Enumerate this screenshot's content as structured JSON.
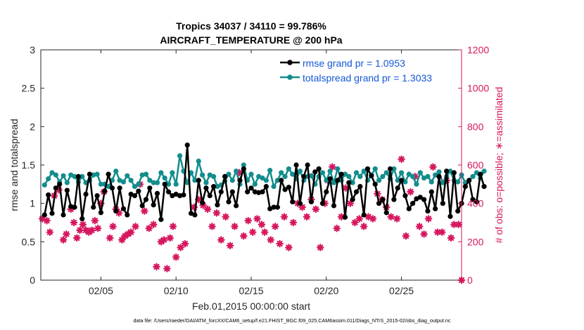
{
  "chart_data": {
    "type": "line",
    "title": "Tropics 34037 / 34110 = 99.786%",
    "subtitle": "AIRCRAFT_TEMPERATURE @ 200 hPa",
    "xlabel": "Feb.01,2015 00:00:00 start",
    "ylabel_left": "rmse and totalspread",
    "ylabel_right": "# of obs: o=possible; ∗=assimilated",
    "footer": "data file: /Users/raeder/DAI/ATM_forcXX/CAM6_setup/f.e21.FHIST_BGC.f09_025.CAM6assim.011/Diags_NTrS_2015-02/obs_diag_output.nc",
    "xlim": [
      1,
      29
    ],
    "ylim_left": [
      0,
      3
    ],
    "ylim_right": [
      0,
      1200
    ],
    "grid": false,
    "legend_position": "top-right",
    "x_ticks": [
      {
        "value": 5,
        "label": "02/05"
      },
      {
        "value": 10,
        "label": "02/10"
      },
      {
        "value": 15,
        "label": "02/15"
      },
      {
        "value": 20,
        "label": "02/20"
      },
      {
        "value": 25,
        "label": "02/25"
      }
    ],
    "y_ticks_left": [
      {
        "value": 0,
        "label": "0"
      },
      {
        "value": 0.5,
        "label": "0.5"
      },
      {
        "value": 1,
        "label": "1"
      },
      {
        "value": 1.5,
        "label": "1.5"
      },
      {
        "value": 2,
        "label": "2"
      },
      {
        "value": 2.5,
        "label": "2.5"
      },
      {
        "value": 3,
        "label": "3"
      }
    ],
    "y_ticks_right": [
      {
        "value": 0,
        "label": "0"
      },
      {
        "value": 200,
        "label": "200"
      },
      {
        "value": 400,
        "label": "400"
      },
      {
        "value": 600,
        "label": "600"
      },
      {
        "value": 800,
        "label": "800"
      },
      {
        "value": 1000,
        "label": "1000"
      },
      {
        "value": 1200,
        "label": "1200"
      }
    ],
    "x_start": 1.25,
    "x_step": 0.25,
    "series": [
      {
        "name": "rmse",
        "legend_label": "rmse grand pr = 1.0953",
        "color": "#000000",
        "axis": "left",
        "marker": "circle",
        "values": [
          0.85,
          1.11,
          0.87,
          1.2,
          1.25,
          0.85,
          1.17,
          0.96,
          0.95,
          1.35,
          0.8,
          1.12,
          1.38,
          0.95,
          1.1,
          0.88,
          1.16,
          1.38,
          1.2,
          0.9,
          1.2,
          0.93,
          0.85,
          1.12,
          1.1,
          1.16,
          0.97,
          1.05,
          1.2,
          0.98,
          1.13,
          0.79,
          1.25,
          1.15,
          1.1,
          1.12,
          1.1,
          1.11,
          1.76,
          0.87,
          0.85,
          1.3,
          1.01,
          1.2,
          1.1,
          1.22,
          0.98,
          1.15,
          1.35,
          1.02,
          1.15,
          0.97,
          1.3,
          1.45,
          1.15,
          1.2,
          1.15,
          1.14,
          1.15,
          1.22,
          0.93,
          0.95,
          0.95,
          1.3,
          1.18,
          1.21,
          1.02,
          1.5,
          1.0,
          1.35,
          1.5,
          1.02,
          1.41,
          1.45,
          1.0,
          1.15,
          1.32,
          0.97,
          1.3,
          1.38,
          0.82,
          1.27,
          1.05,
          1.15,
          1.22,
          0.85,
          1.45,
          1.36,
          1.25,
          1.0,
          1.05,
          0.88,
          1.45,
          1.05,
          1.2,
          1.3,
          1.1,
          0.93,
          1.0,
          1.06,
          1.08,
          1.05,
          0.9,
          1.15,
          0.93,
          1.35,
          1.0,
          1.42,
          0.83,
          1.4,
          0.9,
          1.0,
          1.22,
          1.3,
          1.05,
          1.02,
          1.38,
          1.22
        ]
      },
      {
        "name": "totalspread",
        "legend_label": "totalspread grand pr = 1.3033",
        "color": "#138d8d",
        "axis": "left",
        "marker": "circle",
        "values": [
          1.24,
          1.32,
          1.4,
          1.37,
          1.28,
          1.36,
          1.27,
          1.37,
          1.35,
          1.28,
          1.35,
          1.27,
          1.3,
          1.37,
          1.38,
          1.25,
          1.25,
          1.22,
          1.3,
          1.42,
          1.3,
          1.28,
          1.36,
          1.3,
          1.22,
          1.25,
          1.37,
          1.38,
          1.3,
          1.27,
          1.27,
          1.4,
          1.33,
          1.25,
          1.4,
          1.25,
          1.62,
          1.42,
          1.27,
          1.4,
          1.3,
          1.55,
          1.37,
          1.27,
          1.37,
          1.35,
          1.22,
          1.24,
          1.29,
          1.38,
          1.3,
          1.42,
          1.25,
          1.5,
          1.3,
          1.38,
          1.25,
          1.35,
          1.33,
          1.3,
          1.43,
          1.22,
          1.3,
          1.4,
          1.35,
          1.45,
          1.38,
          1.32,
          1.42,
          1.3,
          1.35,
          1.36,
          1.25,
          1.35,
          1.4,
          1.3,
          1.42,
          1.27,
          1.45,
          1.3,
          1.38,
          1.35,
          1.27,
          1.4,
          1.35,
          1.42,
          1.3,
          1.37,
          1.45,
          1.3,
          1.35,
          1.4,
          1.32,
          1.45,
          1.3,
          1.4,
          1.28,
          1.38,
          1.35,
          1.25,
          1.4,
          1.33,
          1.35,
          1.28,
          1.37,
          1.41,
          1.27,
          1.35,
          1.42,
          1.3,
          1.28,
          1.37,
          1.27,
          1.3,
          1.35,
          1.4,
          1.33,
          1.42
        ]
      },
      {
        "name": "obs_assimilated",
        "color": "#d6165f",
        "axis": "right",
        "marker": "asterisk",
        "points": [
          {
            "x": 1.1,
            "y": 320
          },
          {
            "x": 1.4,
            "y": 310
          },
          {
            "x": 1.6,
            "y": 250
          },
          {
            "x": 1.9,
            "y": 440
          },
          {
            "x": 2.2,
            "y": 470
          },
          {
            "x": 2.5,
            "y": 210
          },
          {
            "x": 2.7,
            "y": 240
          },
          {
            "x": 3.0,
            "y": 370
          },
          {
            "x": 3.2,
            "y": 300
          },
          {
            "x": 3.4,
            "y": 220
          },
          {
            "x": 3.6,
            "y": 260
          },
          {
            "x": 3.8,
            "y": 290
          },
          {
            "x": 4.0,
            "y": 260
          },
          {
            "x": 4.2,
            "y": 250
          },
          {
            "x": 4.4,
            "y": 260
          },
          {
            "x": 4.6,
            "y": 310
          },
          {
            "x": 4.8,
            "y": 270
          },
          {
            "x": 5.0,
            "y": 400
          },
          {
            "x": 5.2,
            "y": 460
          },
          {
            "x": 5.6,
            "y": 220
          },
          {
            "x": 5.8,
            "y": 280
          },
          {
            "x": 6.0,
            "y": 370
          },
          {
            "x": 6.2,
            "y": 350
          },
          {
            "x": 6.4,
            "y": 210
          },
          {
            "x": 6.6,
            "y": 230
          },
          {
            "x": 6.8,
            "y": 240
          },
          {
            "x": 7.0,
            "y": 250
          },
          {
            "x": 7.3,
            "y": 280
          },
          {
            "x": 7.6,
            "y": 500
          },
          {
            "x": 7.9,
            "y": 360
          },
          {
            "x": 8.2,
            "y": 270
          },
          {
            "x": 8.5,
            "y": 290
          },
          {
            "x": 8.7,
            "y": 70
          },
          {
            "x": 9.0,
            "y": 200
          },
          {
            "x": 9.2,
            "y": 210
          },
          {
            "x": 9.4,
            "y": 60
          },
          {
            "x": 9.6,
            "y": 220
          },
          {
            "x": 9.8,
            "y": 280
          },
          {
            "x": 10.0,
            "y": 120
          },
          {
            "x": 10.3,
            "y": 170
          },
          {
            "x": 10.6,
            "y": 190
          },
          {
            "x": 11.2,
            "y": 380
          },
          {
            "x": 11.5,
            "y": 420
          },
          {
            "x": 11.8,
            "y": 390
          },
          {
            "x": 12.1,
            "y": 370
          },
          {
            "x": 12.4,
            "y": 280
          },
          {
            "x": 12.7,
            "y": 350
          },
          {
            "x": 13.0,
            "y": 210
          },
          {
            "x": 13.3,
            "y": 330
          },
          {
            "x": 13.6,
            "y": 180
          },
          {
            "x": 13.9,
            "y": 280
          },
          {
            "x": 14.2,
            "y": 560
          },
          {
            "x": 14.5,
            "y": 230
          },
          {
            "x": 14.8,
            "y": 310
          },
          {
            "x": 15.1,
            "y": 250
          },
          {
            "x": 15.4,
            "y": 320
          },
          {
            "x": 15.7,
            "y": 290
          },
          {
            "x": 15.9,
            "y": 250
          },
          {
            "x": 16.3,
            "y": 210
          },
          {
            "x": 16.6,
            "y": 280
          },
          {
            "x": 16.9,
            "y": 190
          },
          {
            "x": 17.2,
            "y": 330
          },
          {
            "x": 17.5,
            "y": 170
          },
          {
            "x": 17.8,
            "y": 300
          },
          {
            "x": 18.1,
            "y": 400
          },
          {
            "x": 18.4,
            "y": 380
          },
          {
            "x": 18.7,
            "y": 330
          },
          {
            "x": 19.0,
            "y": 420
          },
          {
            "x": 19.3,
            "y": 370
          },
          {
            "x": 19.6,
            "y": 170
          },
          {
            "x": 19.9,
            "y": 400
          },
          {
            "x": 20.1,
            "y": 520
          },
          {
            "x": 20.4,
            "y": 590
          },
          {
            "x": 20.7,
            "y": 270
          },
          {
            "x": 21.0,
            "y": 330
          },
          {
            "x": 21.3,
            "y": 480
          },
          {
            "x": 21.6,
            "y": 400
          },
          {
            "x": 21.9,
            "y": 300
          },
          {
            "x": 22.2,
            "y": 320
          },
          {
            "x": 22.5,
            "y": 280
          },
          {
            "x": 22.8,
            "y": 330
          },
          {
            "x": 23.1,
            "y": 320
          },
          {
            "x": 23.4,
            "y": 450
          },
          {
            "x": 23.7,
            "y": 420
          },
          {
            "x": 24.0,
            "y": 380
          },
          {
            "x": 24.3,
            "y": 330
          },
          {
            "x": 24.7,
            "y": 320
          },
          {
            "x": 25.0,
            "y": 630
          },
          {
            "x": 25.3,
            "y": 230
          },
          {
            "x": 25.6,
            "y": 460
          },
          {
            "x": 25.9,
            "y": 540
          },
          {
            "x": 26.2,
            "y": 280
          },
          {
            "x": 26.5,
            "y": 240
          },
          {
            "x": 26.8,
            "y": 320
          },
          {
            "x": 27.1,
            "y": 590
          },
          {
            "x": 27.4,
            "y": 250
          },
          {
            "x": 27.7,
            "y": 250
          },
          {
            "x": 28.0,
            "y": 520
          },
          {
            "x": 28.3,
            "y": 220
          },
          {
            "x": 28.5,
            "y": 290
          },
          {
            "x": 28.8,
            "y": 290
          },
          {
            "x": 29.0,
            "y": 0
          }
        ]
      }
    ]
  }
}
